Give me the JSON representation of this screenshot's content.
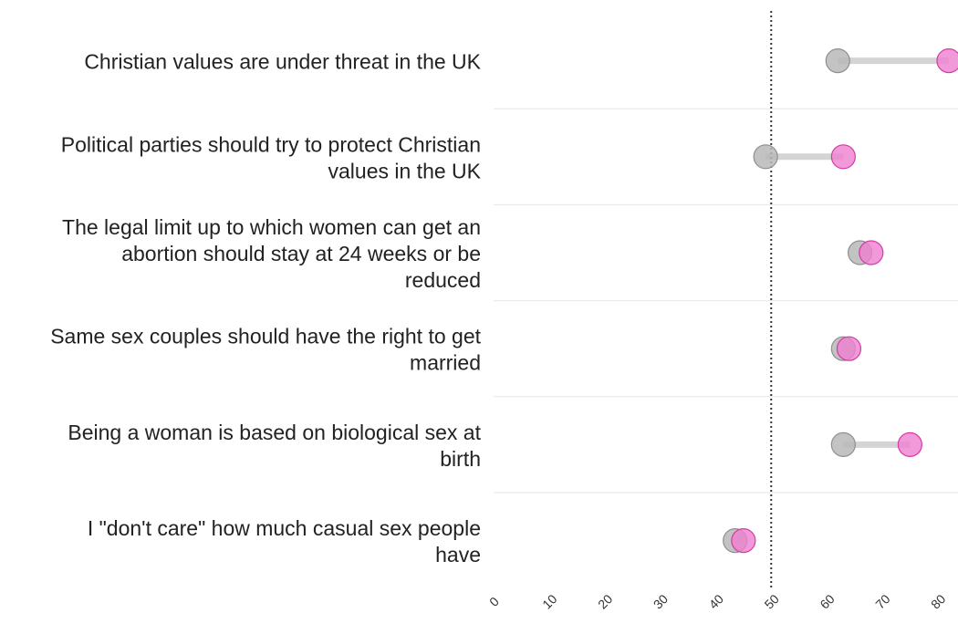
{
  "chart_data": {
    "type": "dumbbell",
    "title": "",
    "xlabel": "",
    "ylabel": "",
    "xlim": [
      0,
      84
    ],
    "x_ticks": [
      0,
      10,
      20,
      30,
      40,
      50,
      60,
      70,
      80
    ],
    "x_tick_labels": [
      "0",
      "10",
      "20",
      "30",
      "40",
      "50",
      "60",
      "70",
      "80"
    ],
    "reference_line": 50,
    "grid": "horizontal separators between rows",
    "legend": "none",
    "colors": {
      "gray": "#b9b9b9",
      "gray_stroke": "#8f8f8f",
      "pink": "#ee7fcf",
      "pink_stroke": "#d63aa6",
      "connector": "#d4d4d4",
      "separator": "#e6e6e6",
      "reference": "#333333"
    },
    "categories": [
      [
        "Christian values are under threat in the UK"
      ],
      [
        "Political parties should try to protect Christian",
        "values in the UK"
      ],
      [
        "The legal limit up to which women can get an",
        "abortion should stay at 24 weeks or be",
        "reduced"
      ],
      [
        "Same sex couples should have the right to get",
        "married"
      ],
      [
        "Being a woman is based on biological sex at",
        "birth"
      ],
      [
        "I \"don't care\" how much casual sex people",
        "have"
      ]
    ],
    "series": [
      {
        "color": "gray",
        "values": [
          62,
          49,
          66,
          63,
          63,
          43.5
        ]
      },
      {
        "color": "pink",
        "values": [
          82,
          63,
          68,
          64,
          75,
          45
        ]
      }
    ]
  }
}
